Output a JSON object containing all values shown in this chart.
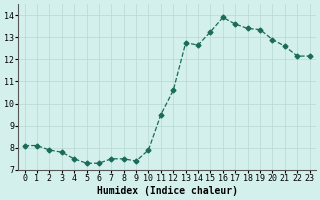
{
  "x": [
    0,
    1,
    2,
    3,
    4,
    5,
    6,
    7,
    8,
    9,
    10,
    11,
    12,
    13,
    14,
    15,
    16,
    17,
    18,
    19,
    20,
    21,
    22,
    23
  ],
  "y": [
    8.1,
    8.1,
    7.9,
    7.8,
    7.5,
    7.3,
    7.3,
    7.5,
    7.5,
    7.4,
    7.9,
    9.5,
    10.6,
    12.75,
    12.65,
    13.25,
    13.9,
    13.6,
    13.4,
    13.35,
    12.9,
    12.6,
    12.15,
    12.15
  ],
  "ylim": [
    7,
    14.5
  ],
  "xlim": [
    -0.5,
    23.5
  ],
  "yticks": [
    7,
    8,
    9,
    10,
    11,
    12,
    13,
    14
  ],
  "xticks": [
    0,
    1,
    2,
    3,
    4,
    5,
    6,
    7,
    8,
    9,
    10,
    11,
    12,
    13,
    14,
    15,
    16,
    17,
    18,
    19,
    20,
    21,
    22,
    23
  ],
  "xlabel": "Humidex (Indice chaleur)",
  "line_color": "#1a6b5a",
  "marker": "D",
  "marker_size": 2.5,
  "bg_color": "#d4f0ec",
  "grid_color": "#b8d8d4",
  "tick_fontsize": 6,
  "xlabel_fontsize": 7
}
